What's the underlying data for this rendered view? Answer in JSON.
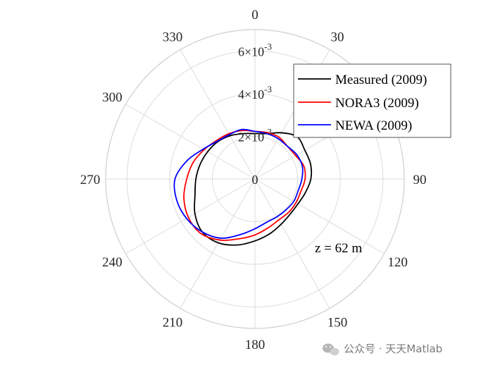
{
  "chart_data": {
    "type": "polar-line",
    "theta_zero": "top",
    "theta_direction": "clockwise",
    "theta_ticks": [
      "0",
      "30",
      "60",
      "90",
      "120",
      "150",
      "180",
      "210",
      "240",
      "270",
      "300",
      "330"
    ],
    "theta_values_deg": [
      0,
      30,
      60,
      90,
      120,
      150,
      180,
      210,
      240,
      270,
      300,
      330
    ],
    "r_lim": [
      0,
      0.007
    ],
    "r_tick_values": [
      0,
      0.002,
      0.004,
      0.006
    ],
    "r_tick_labels": [
      {
        "mantissa": "0",
        "exp": ""
      },
      {
        "mantissa": "2×10",
        "exp": "-3"
      },
      {
        "mantissa": "4×10",
        "exp": "-3"
      },
      {
        "mantissa": "6×10",
        "exp": "-3"
      }
    ],
    "annotation": "z = 62 m",
    "legend_position": "upper-right",
    "series": [
      {
        "name": "Measured (2009)",
        "color": "#000000",
        "theta_deg": [
          0,
          15,
          30,
          45,
          60,
          75,
          90,
          105,
          120,
          135,
          150,
          165,
          180,
          195,
          210,
          225,
          240,
          255,
          270,
          285,
          300,
          315,
          330,
          345
        ],
        "r": [
          0.00213,
          0.0022,
          0.0025,
          0.0028,
          0.0027,
          0.0027,
          0.00262,
          0.00245,
          0.00233,
          0.00233,
          0.00245,
          0.00266,
          0.0029,
          0.0032,
          0.00345,
          0.0035,
          0.00325,
          0.00291,
          0.00277,
          0.00266,
          0.00256,
          0.00247,
          0.00234,
          0.0022
        ]
      },
      {
        "name": "NORA3 (2009)",
        "color": "#ff0000",
        "theta_deg": [
          0,
          15,
          30,
          45,
          60,
          75,
          90,
          105,
          120,
          135,
          150,
          165,
          180,
          195,
          210,
          225,
          240,
          255,
          270,
          285,
          300,
          315,
          330,
          345
        ],
        "r": [
          0.00223,
          0.00225,
          0.00226,
          0.00216,
          0.0022,
          0.00237,
          0.00235,
          0.00223,
          0.00222,
          0.00222,
          0.00222,
          0.00237,
          0.00262,
          0.0029,
          0.0033,
          0.0036,
          0.0036,
          0.00345,
          0.0032,
          0.003,
          0.00275,
          0.00255,
          0.00245,
          0.00235
        ]
      },
      {
        "name": "NEWA (2009)",
        "color": "#0000ff",
        "theta_deg": [
          0,
          15,
          30,
          45,
          60,
          75,
          90,
          105,
          120,
          135,
          150,
          165,
          180,
          195,
          210,
          225,
          240,
          255,
          270,
          285,
          300,
          315,
          330,
          345
        ],
        "r": [
          0.00223,
          0.0022,
          0.00218,
          0.00216,
          0.00227,
          0.0023,
          0.0022,
          0.0021,
          0.0021,
          0.00205,
          0.00205,
          0.0021,
          0.00233,
          0.0027,
          0.0032,
          0.0035,
          0.0037,
          0.0038,
          0.00375,
          0.0033,
          0.0028,
          0.0025,
          0.0024,
          0.0024
        ]
      }
    ]
  },
  "watermark": {
    "icon": "wechat-icon",
    "text": "公众号 · 天天Matlab"
  }
}
